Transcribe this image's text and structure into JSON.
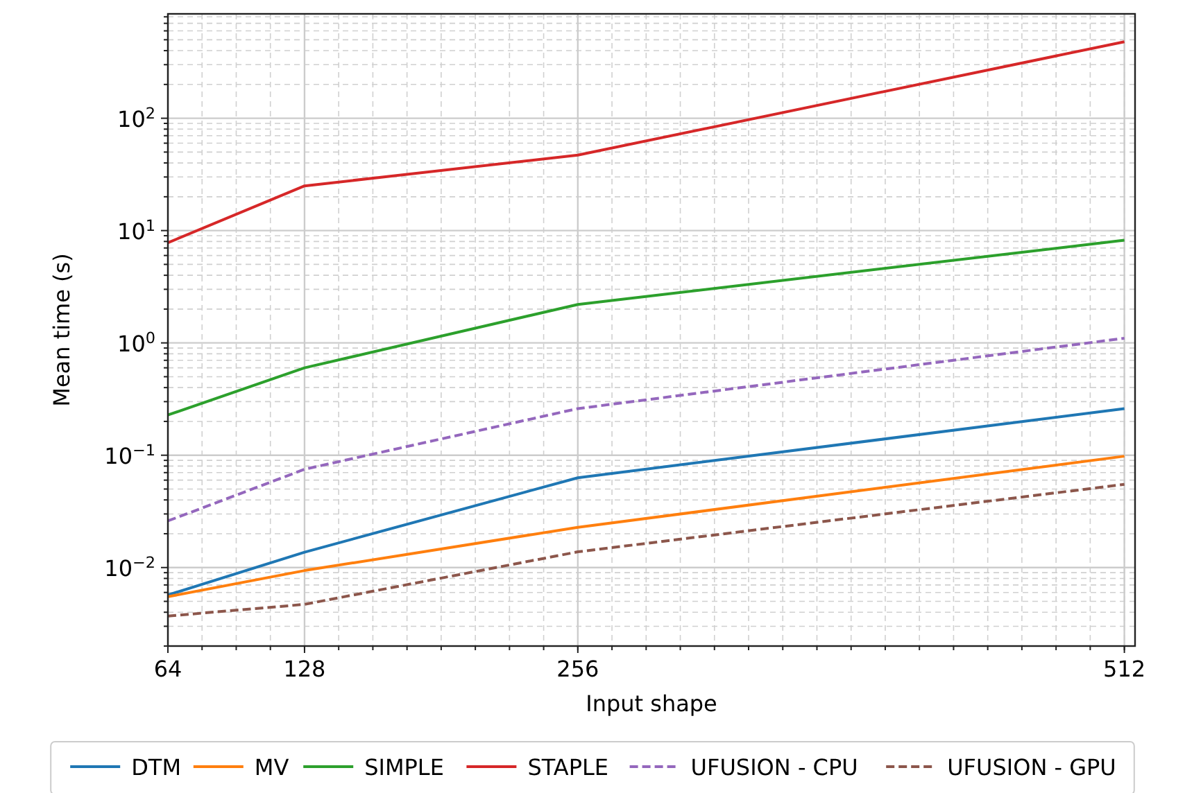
{
  "chart_data": {
    "type": "line",
    "xlabel": "Input shape",
    "ylabel": "Mean time (s)",
    "x": [
      64,
      128,
      256,
      512
    ],
    "xlim": [
      64,
      517
    ],
    "xticks": [
      64,
      128,
      256,
      512
    ],
    "ylim": [
      0.002,
      850
    ],
    "yticks": [
      {
        "value": 0.01,
        "label": "10$^{−2}$"
      },
      {
        "value": 0.1,
        "label": "10$^{−1}$"
      },
      {
        "value": 1,
        "label": "10$^{0}$"
      },
      {
        "value": 10,
        "label": "10$^{1}$"
      },
      {
        "value": 100,
        "label": "10$^{2}$"
      }
    ],
    "log": "y",
    "grid": true,
    "legend": "bottom",
    "marker": "none",
    "series": [
      {
        "name": "DTM",
        "color": "#1f77b4",
        "line_style": "solid",
        "values": [
          0.0057,
          0.0137,
          0.063,
          0.26
        ]
      },
      {
        "name": "MV",
        "color": "#ff7f0e",
        "line_style": "solid",
        "values": [
          0.0055,
          0.0094,
          0.0228,
          0.098
        ]
      },
      {
        "name": "SIMPLE",
        "color": "#2ca02c",
        "line_style": "solid",
        "values": [
          0.228,
          0.6,
          2.2,
          8.2
        ]
      },
      {
        "name": "STAPLE",
        "color": "#d62728",
        "line_style": "solid",
        "values": [
          7.8,
          25,
          47,
          480
        ]
      },
      {
        "name": "UFUSION - CPU",
        "color": "#9467bd",
        "line_style": "dashed",
        "values": [
          0.026,
          0.075,
          0.26,
          1.1
        ]
      },
      {
        "name": "UFUSION - GPU",
        "color": "#8c564b",
        "line_style": "dashed",
        "values": [
          0.0037,
          0.0047,
          0.0138,
          0.055
        ]
      }
    ]
  }
}
